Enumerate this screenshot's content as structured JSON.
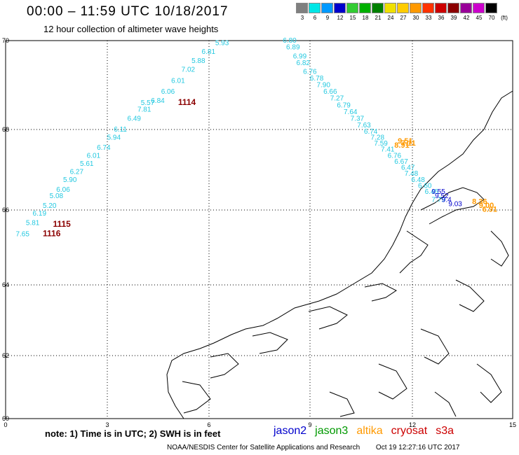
{
  "header": {
    "title": "00:00 – 11:59 UTC 10/18/2017",
    "subtitle": "12 hour collection of altimeter wave heights"
  },
  "scale": {
    "unit": "(ft)",
    "bins": [
      {
        "label": "3",
        "color": "#7f7f7f"
      },
      {
        "label": "6",
        "color": "#00e6e6"
      },
      {
        "label": "9",
        "color": "#0099ff"
      },
      {
        "label": "12",
        "color": "#0000cc"
      },
      {
        "label": "15",
        "color": "#33cc33"
      },
      {
        "label": "18",
        "color": "#00b000"
      },
      {
        "label": "21",
        "color": "#008000"
      },
      {
        "label": "24",
        "color": "#f0e000"
      },
      {
        "label": "27",
        "color": "#ffcc00"
      },
      {
        "label": "30",
        "color": "#ff9900"
      },
      {
        "label": "33",
        "color": "#ff3300"
      },
      {
        "label": "36",
        "color": "#cc0000"
      },
      {
        "label": "39",
        "color": "#8b0000"
      },
      {
        "label": "42",
        "color": "#990099"
      },
      {
        "label": "45",
        "color": "#cc00cc"
      },
      {
        "label": "70",
        "color": "#000000"
      }
    ]
  },
  "map_data": {
    "lon_range": [
      0,
      15
    ],
    "lat_range": [
      60,
      70
    ],
    "x_ticks": [
      "0",
      "3",
      "6",
      "9",
      "12",
      "15"
    ],
    "y_ticks": [
      "70",
      "68",
      "66",
      "64",
      "62",
      "60"
    ],
    "track_colors": {
      "low": "#22c8e0",
      "alt": "#ff9900",
      "j2": "#0000cc",
      "time": "#8b0000"
    },
    "track_west": [
      {
        "v": "5.93",
        "lon": 6.2,
        "lat": 69.9
      },
      {
        "v": "6.81",
        "lon": 5.8,
        "lat": 69.7
      },
      {
        "v": "5.88",
        "lon": 5.5,
        "lat": 69.5
      },
      {
        "v": "7.02",
        "lon": 5.2,
        "lat": 69.3
      },
      {
        "v": "6.01",
        "lon": 4.9,
        "lat": 69.05
      },
      {
        "v": "6.06",
        "lon": 4.6,
        "lat": 68.8
      },
      {
        "v": "6.84",
        "lon": 4.3,
        "lat": 68.6
      },
      {
        "v": "5.57",
        "lon": 4.0,
        "lat": 68.55
      },
      {
        "v": "7.81",
        "lon": 3.9,
        "lat": 68.4
      },
      {
        "v": "6.49",
        "lon": 3.6,
        "lat": 68.2
      },
      {
        "v": "6.11",
        "lon": 3.2,
        "lat": 67.95
      },
      {
        "v": "5.94",
        "lon": 3.0,
        "lat": 67.75
      },
      {
        "v": "6.74",
        "lon": 2.7,
        "lat": 67.5
      },
      {
        "v": "6.01",
        "lon": 2.4,
        "lat": 67.3
      },
      {
        "v": "5.61",
        "lon": 2.2,
        "lat": 67.1
      },
      {
        "v": "6.27",
        "lon": 1.9,
        "lat": 66.9
      },
      {
        "v": "5.90",
        "lon": 1.7,
        "lat": 66.7
      },
      {
        "v": "6.06",
        "lon": 1.5,
        "lat": 66.45
      },
      {
        "v": "5.08",
        "lon": 1.3,
        "lat": 66.3
      },
      {
        "v": "5.20",
        "lon": 1.1,
        "lat": 66.05
      },
      {
        "v": "6.19",
        "lon": 0.8,
        "lat": 65.85
      },
      {
        "v": "5.81",
        "lon": 0.6,
        "lat": 65.6
      },
      {
        "v": "7.65",
        "lon": 0.3,
        "lat": 65.3
      }
    ],
    "track_east": [
      {
        "v": "6.80",
        "lon": 8.2,
        "lat": 69.95
      },
      {
        "v": "6.89",
        "lon": 8.3,
        "lat": 69.8
      },
      {
        "v": "6.99",
        "lon": 8.5,
        "lat": 69.6
      },
      {
        "v": "6.82",
        "lon": 8.6,
        "lat": 69.45
      },
      {
        "v": "6.76",
        "lon": 8.8,
        "lat": 69.25
      },
      {
        "v": "6.78",
        "lon": 9.0,
        "lat": 69.1
      },
      {
        "v": "7.90",
        "lon": 9.2,
        "lat": 68.95
      },
      {
        "v": "6.66",
        "lon": 9.4,
        "lat": 68.8
      },
      {
        "v": "7.27",
        "lon": 9.6,
        "lat": 68.65
      },
      {
        "v": "6.79",
        "lon": 9.8,
        "lat": 68.5
      },
      {
        "v": "7.64",
        "lon": 10.0,
        "lat": 68.35
      },
      {
        "v": "7.37",
        "lon": 10.2,
        "lat": 68.2
      },
      {
        "v": "7.63",
        "lon": 10.4,
        "lat": 68.05
      },
      {
        "v": "6.74",
        "lon": 10.6,
        "lat": 67.9
      },
      {
        "v": "7.28",
        "lon": 10.8,
        "lat": 67.75
      },
      {
        "v": "7.59",
        "lon": 10.9,
        "lat": 67.6
      },
      {
        "v": "7.41",
        "lon": 11.1,
        "lat": 67.45
      },
      {
        "v": "6.76",
        "lon": 11.3,
        "lat": 67.3
      },
      {
        "v": "6.67",
        "lon": 11.5,
        "lat": 67.15
      },
      {
        "v": "6.47",
        "lon": 11.7,
        "lat": 67.0
      },
      {
        "v": "7.48",
        "lon": 11.8,
        "lat": 66.85
      },
      {
        "v": "6.48",
        "lon": 12.0,
        "lat": 66.7
      },
      {
        "v": "6.60",
        "lon": 12.2,
        "lat": 66.55
      },
      {
        "v": "6.45",
        "lon": 12.4,
        "lat": 66.4
      },
      {
        "v": "7.79",
        "lon": 12.6,
        "lat": 66.2
      }
    ],
    "altika_marks": [
      {
        "v": "9.51",
        "lon": 11.6,
        "lat": 67.65
      },
      {
        "v": "8.91",
        "lon": 11.5,
        "lat": 67.55
      },
      {
        "v": "7.11",
        "lon": 11.7,
        "lat": 67.6
      },
      {
        "v": "8.36",
        "lon": 13.8,
        "lat": 66.15
      },
      {
        "v": "9.00",
        "lon": 14.0,
        "lat": 66.05
      },
      {
        "v": "6.91",
        "lon": 14.1,
        "lat": 65.95
      }
    ],
    "jason2_marks": [
      {
        "v": "9.55",
        "lon": 12.6,
        "lat": 66.4
      },
      {
        "v": "9.52",
        "lon": 12.7,
        "lat": 66.3
      },
      {
        "v": "9.4",
        "lon": 12.9,
        "lat": 66.2
      },
      {
        "v": "9.03",
        "lon": 13.1,
        "lat": 66.1
      }
    ],
    "time_marks": [
      {
        "v": "1114",
        "lon": 5.1,
        "lat": 68.55
      },
      {
        "v": "1115",
        "lon": 1.4,
        "lat": 65.55
      },
      {
        "v": "1116",
        "lon": 1.1,
        "lat": 65.3
      }
    ]
  },
  "footer": {
    "note": "note: 1) Time is in UTC; 2) SWH is in feet",
    "satellites": [
      {
        "name": "jason2",
        "color": "#0000cc"
      },
      {
        "name": "jason3",
        "color": "#009900"
      },
      {
        "name": "altika",
        "color": "#ff9900"
      },
      {
        "name": "cryosat",
        "color": "#cc0000"
      },
      {
        "name": "s3a",
        "color": "#cc0000"
      }
    ],
    "credit": "NOAA/NESDIS Center for Satellite Applications and Research",
    "timestamp": "Oct 19 12:27:16 UTC 2017"
  }
}
